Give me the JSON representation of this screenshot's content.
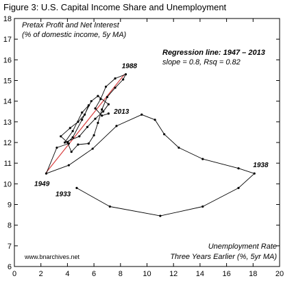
{
  "chart_data": {
    "type": "scatter",
    "title": "Figure 3: U.S. Capital Income Share and Unemployment",
    "ylabel_lines": [
      "Pretax Profit and Net Interest",
      "(% of domestic income, 5y MA)"
    ],
    "xlabel_lines": [
      "Unemployment Rate",
      "Three Years Earlier (%, 5yr MA)"
    ],
    "source": "www.bnarchives.net",
    "regression": {
      "title": "Regression line: 1947 – 2013",
      "stats": "slope = 0.8, Rsq = 0.82",
      "start": {
        "x": 2.4,
        "y": 10.55
      },
      "end": {
        "x": 8.3,
        "y": 15.3
      },
      "color": "#d94040"
    },
    "xlim": [
      0,
      20
    ],
    "ylim": [
      6,
      18
    ],
    "x_ticks": [
      0,
      2,
      4,
      6,
      8,
      10,
      12,
      14,
      16,
      18,
      20
    ],
    "y_ticks": [
      6,
      7,
      8,
      9,
      10,
      11,
      12,
      13,
      14,
      15,
      16,
      17,
      18
    ],
    "grid": false,
    "series": [
      {
        "points": [
          {
            "x": 4.7,
            "y": 9.8
          },
          {
            "x": 7.2,
            "y": 8.9
          },
          {
            "x": 11.0,
            "y": 8.45
          },
          {
            "x": 14.2,
            "y": 8.9
          },
          {
            "x": 16.9,
            "y": 9.8
          },
          {
            "x": 18.1,
            "y": 10.5
          },
          {
            "x": 16.9,
            "y": 10.75
          },
          {
            "x": 14.2,
            "y": 11.2
          },
          {
            "x": 12.4,
            "y": 11.75
          },
          {
            "x": 11.3,
            "y": 12.4
          },
          {
            "x": 10.6,
            "y": 13.1
          },
          {
            "x": 9.6,
            "y": 13.35
          },
          {
            "x": 7.7,
            "y": 12.8
          },
          {
            "x": 5.9,
            "y": 11.7
          },
          {
            "x": 4.1,
            "y": 10.9
          },
          {
            "x": 2.4,
            "y": 10.5
          },
          {
            "x": 3.2,
            "y": 11.75
          },
          {
            "x": 4.1,
            "y": 11.95
          },
          {
            "x": 3.5,
            "y": 12.3
          },
          {
            "x": 4.2,
            "y": 12.7
          },
          {
            "x": 4.8,
            "y": 13.0
          },
          {
            "x": 5.3,
            "y": 13.35
          },
          {
            "x": 5.6,
            "y": 13.8
          },
          {
            "x": 5.1,
            "y": 13.45
          },
          {
            "x": 4.4,
            "y": 12.55
          },
          {
            "x": 3.8,
            "y": 12.0
          },
          {
            "x": 4.9,
            "y": 12.3
          },
          {
            "x": 5.5,
            "y": 12.75
          },
          {
            "x": 6.1,
            "y": 13.15
          },
          {
            "x": 6.7,
            "y": 13.5
          },
          {
            "x": 7.1,
            "y": 13.85
          },
          {
            "x": 6.3,
            "y": 14.25
          },
          {
            "x": 5.8,
            "y": 14.0
          },
          {
            "x": 5.1,
            "y": 13.1
          },
          {
            "x": 4.4,
            "y": 12.25
          },
          {
            "x": 4.0,
            "y": 12.0
          },
          {
            "x": 4.3,
            "y": 11.55
          },
          {
            "x": 4.8,
            "y": 11.9
          },
          {
            "x": 5.6,
            "y": 11.95
          },
          {
            "x": 6.0,
            "y": 12.35
          },
          {
            "x": 6.3,
            "y": 12.95
          },
          {
            "x": 6.6,
            "y": 13.6
          },
          {
            "x": 7.0,
            "y": 14.2
          },
          {
            "x": 7.6,
            "y": 14.65
          },
          {
            "x": 8.2,
            "y": 15.05
          },
          {
            "x": 8.4,
            "y": 15.3
          },
          {
            "x": 7.6,
            "y": 15.1
          },
          {
            "x": 6.9,
            "y": 14.7
          },
          {
            "x": 6.5,
            "y": 14.1
          },
          {
            "x": 6.1,
            "y": 13.65
          },
          {
            "x": 6.6,
            "y": 13.3
          },
          {
            "x": 7.1,
            "y": 13.4
          }
        ]
      }
    ],
    "annotations": [
      {
        "text": "1988",
        "x": 8.1,
        "y": 15.6,
        "bold": true,
        "italic": true
      },
      {
        "text": "2013",
        "x": 7.5,
        "y": 13.4,
        "bold": true,
        "italic": true
      },
      {
        "text": "1949",
        "x": 1.5,
        "y": 9.9,
        "bold": true,
        "italic": true
      },
      {
        "text": "1938",
        "x": 18.0,
        "y": 10.8,
        "bold": true,
        "italic": true
      },
      {
        "text": "1933",
        "x": 3.1,
        "y": 9.4,
        "bold": true,
        "italic": true
      }
    ]
  }
}
